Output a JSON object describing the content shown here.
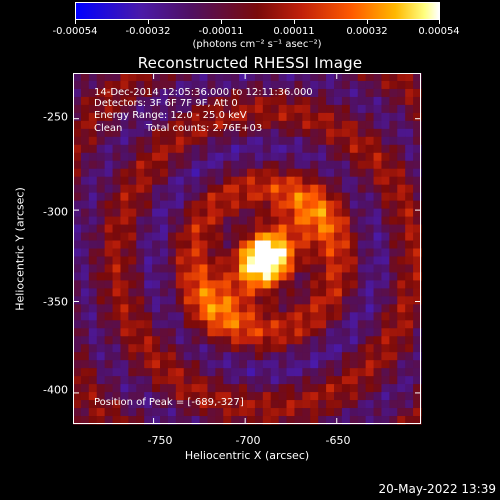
{
  "colorbar": {
    "tick_labels": [
      "-0.00054",
      "-0.00032",
      "-0.00011",
      "0.00011",
      "0.00032",
      "0.00054"
    ],
    "unit_label": "(photons cm⁻² s⁻¹ asec⁻²)",
    "range": [
      -0.00054,
      0.00054
    ]
  },
  "chart_data": {
    "type": "heatmap",
    "title": "Reconstructed RHESSI Image",
    "xlabel": "Heliocentric X (arcsec)",
    "ylabel": "Heliocentric Y (arcsec)",
    "xlim": [
      -794,
      -604
    ],
    "ylim": [
      -417,
      -225
    ],
    "x_ticks": [
      -750,
      -700,
      -650
    ],
    "y_ticks": [
      -250,
      -300,
      -350,
      -400
    ],
    "peak": {
      "x": -689,
      "y": -327
    },
    "annotations": {
      "time_range": "14-Dec-2014 12:05:36.000 to 12:11:36.000",
      "detectors": "Detectors: 3F 6F 7F 9F, Att 0",
      "energy": "Energy Range: 12.0 - 25.0 keV",
      "clean": "Clean",
      "counts": "Total counts: 2.76E+03",
      "peak_text": "Position of Peak = [-689,-327]"
    }
  },
  "footer": {
    "date": "20-May-2022 13:39"
  }
}
